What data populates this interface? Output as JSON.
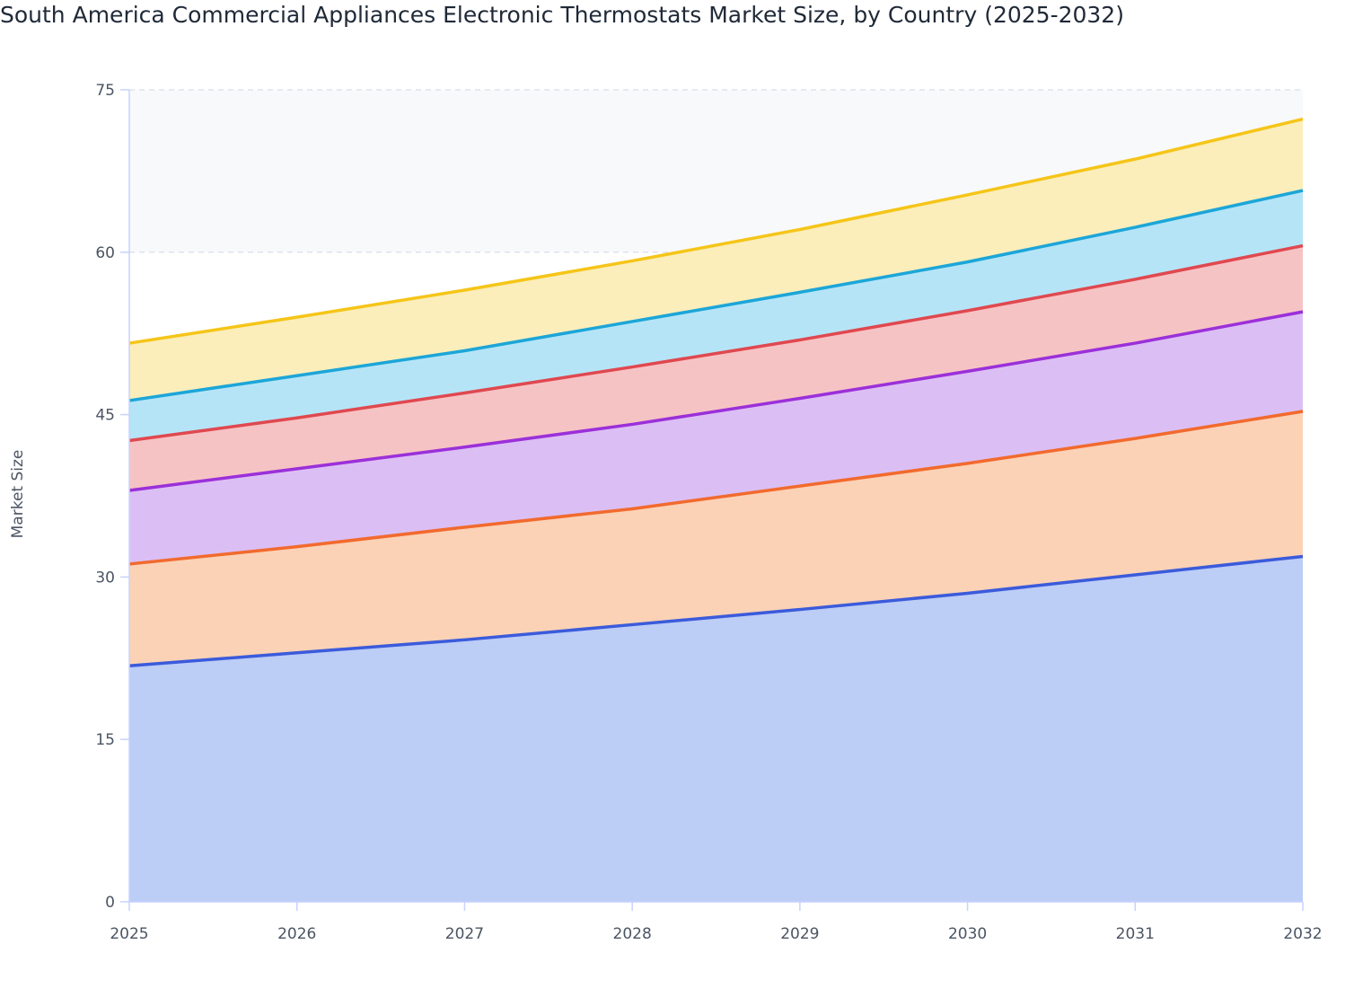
{
  "chart_data": {
    "type": "area",
    "stacked": true,
    "title": "South America Commercial Appliances Electronic Thermostats Market Size, by Country (2025-2032)",
    "xlabel": "",
    "ylabel": "Market Size",
    "x": [
      "2025",
      "2026",
      "2027",
      "2028",
      "2029",
      "2030",
      "2031",
      "2032"
    ],
    "ylim": [
      0,
      75
    ],
    "yticks": [
      0,
      15,
      30,
      45,
      60,
      75
    ],
    "grid": true,
    "legend": "none",
    "series": [
      {
        "values": [
          21.8,
          23.0,
          24.2,
          25.6,
          27.0,
          28.5,
          30.2,
          31.9
        ],
        "line": "#3b5bdb",
        "fill": "#bccdf6"
      },
      {
        "values": [
          9.4,
          9.8,
          10.4,
          10.7,
          11.4,
          12.0,
          12.6,
          13.4
        ],
        "line": "#f26a2e",
        "fill": "#fbd2b6"
      },
      {
        "values": [
          6.8,
          7.2,
          7.4,
          7.8,
          8.1,
          8.5,
          8.8,
          9.2
        ],
        "line": "#9b30d9",
        "fill": "#dbbff4"
      },
      {
        "values": [
          4.6,
          4.7,
          5.0,
          5.3,
          5.4,
          5.6,
          5.9,
          6.1
        ],
        "line": "#e0484f",
        "fill": "#f6c3c4"
      },
      {
        "values": [
          3.7,
          3.9,
          3.9,
          4.2,
          4.4,
          4.5,
          4.8,
          5.1
        ],
        "line": "#1ca6d8",
        "fill": "#b6e4f7"
      },
      {
        "values": [
          5.3,
          5.4,
          5.6,
          5.6,
          5.8,
          6.2,
          6.3,
          6.6
        ],
        "line": "#f5c518",
        "fill": "#fbeebb"
      }
    ]
  }
}
